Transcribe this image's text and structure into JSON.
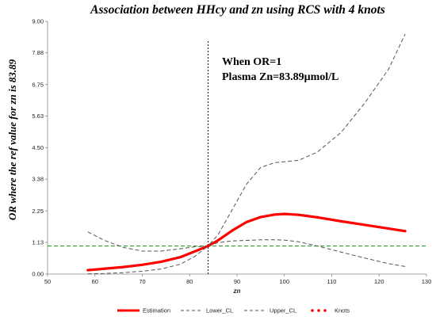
{
  "chart_data": {
    "type": "line",
    "title": "Association between HHcy and zn using  RCS with 4 knots",
    "xlabel": "zn",
    "ylabel": "OR where the ref value for zn is 83.89",
    "xlim": [
      50,
      130
    ],
    "ylim": [
      0,
      9
    ],
    "x_ticks": [
      "50",
      "60",
      "70",
      "80",
      "90",
      "100",
      "110",
      "120",
      "130"
    ],
    "y_ticks": [
      "0.00",
      "1.13",
      "2.25",
      "3.38",
      "4.50",
      "5.63",
      "6.75",
      "7.88",
      "9.00"
    ],
    "x_tick_values": [
      50,
      60,
      70,
      80,
      90,
      100,
      110,
      120,
      130
    ],
    "y_tick_values": [
      0,
      1.13,
      2.25,
      3.38,
      4.5,
      5.63,
      6.75,
      7.88,
      9.0
    ],
    "annotations": [
      "When OR=1",
      "Plasma Zn=83.89μmol/L"
    ],
    "reference_lines": {
      "vertical_x": 83.89,
      "horizontal_y": 1.0
    },
    "series": [
      {
        "name": "Estimation",
        "color": "#ff0000",
        "x": [
          58.5,
          62,
          66,
          70,
          74,
          78,
          81,
          83.89,
          86,
          89,
          92,
          95,
          98,
          100,
          103,
          107,
          112,
          117,
          122,
          125.5
        ],
        "y": [
          0.14,
          0.19,
          0.25,
          0.33,
          0.44,
          0.6,
          0.8,
          1.0,
          1.2,
          1.55,
          1.85,
          2.03,
          2.12,
          2.14,
          2.11,
          2.02,
          1.88,
          1.75,
          1.62,
          1.53
        ]
      },
      {
        "name": "Lower_CL",
        "color": "#555555",
        "x": [
          58.5,
          62,
          66,
          70,
          74,
          78,
          81,
          83.89,
          86,
          89,
          92,
          95,
          98,
          100,
          103,
          107,
          112,
          117,
          122,
          125.5
        ],
        "y": [
          0.01,
          0.02,
          0.05,
          0.1,
          0.18,
          0.35,
          0.62,
          1.0,
          1.12,
          1.18,
          1.2,
          1.22,
          1.22,
          1.21,
          1.15,
          1.0,
          0.78,
          0.57,
          0.37,
          0.27
        ]
      },
      {
        "name": "Upper_CL",
        "color": "#555555",
        "x": [
          58.5,
          62,
          66,
          70,
          74,
          78,
          81,
          83.89,
          86,
          89,
          92,
          95,
          98,
          100,
          103,
          107,
          112,
          117,
          122,
          125.5
        ],
        "y": [
          1.5,
          1.2,
          0.95,
          0.82,
          0.82,
          0.9,
          0.97,
          1.0,
          1.4,
          2.3,
          3.2,
          3.8,
          3.97,
          4.0,
          4.05,
          4.35,
          5.05,
          6.1,
          7.3,
          8.55
        ]
      },
      {
        "name": "Knots",
        "color": "#ff0000",
        "x": [
          62,
          83.89,
          89,
          107
        ],
        "y": [
          0.19,
          1.0,
          1.55,
          2.02
        ]
      }
    ],
    "legend": [
      "Estimation",
      "Lower_CL",
      "Upper_CL",
      "Knots"
    ],
    "legend_position": "bottom",
    "grid": false,
    "colors": {
      "estimation": "#ff0000",
      "ci": "#555555",
      "ref_horizontal": "#2ca02c",
      "ref_vertical": "#000000"
    }
  }
}
